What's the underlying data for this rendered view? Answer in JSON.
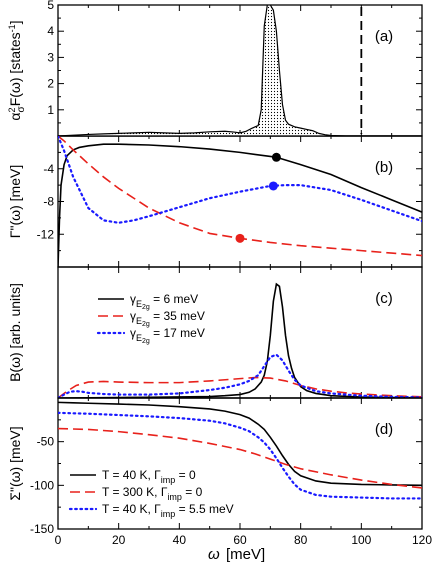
{
  "figure": {
    "x_axis": {
      "symbol": "ω",
      "label": "[meV]",
      "ticks": [
        "0",
        "20",
        "40",
        "60",
        "80",
        "100",
        "120"
      ],
      "range": [
        0,
        120
      ]
    }
  },
  "chart_data": [
    {
      "type": "area",
      "panel_label": "(a)",
      "ylabel": "α²σF(ω)  [states⁻¹]",
      "ylabel_main": "α",
      "ylabel_sup": "2",
      "ylabel_sub": "σ",
      "ylabel_rest": "F(ω)  [states",
      "ylabel_exp": "-1",
      "ylabel_close": "]",
      "ylim": [
        0,
        5
      ],
      "yticks": [
        "1",
        "2",
        "3",
        "4",
        "5"
      ],
      "color": "#000000",
      "fill_pattern": "dotted",
      "vertical_dashed_line_x": 100,
      "series": [
        {
          "x": [
            0,
            5,
            10,
            15,
            20,
            25,
            30,
            35,
            40,
            45,
            50,
            55,
            58,
            60,
            62,
            64,
            66,
            67,
            68,
            69,
            70,
            71,
            72,
            73,
            74,
            75,
            76,
            78,
            80,
            82,
            84,
            86,
            88,
            90,
            95,
            100,
            110,
            120
          ],
          "y": [
            0,
            0.03,
            0.06,
            0.08,
            0.1,
            0.12,
            0.14,
            0.12,
            0.1,
            0.12,
            0.16,
            0.18,
            0.15,
            0.12,
            0.18,
            0.3,
            0.4,
            1.0,
            4.2,
            5.0,
            5.0,
            4.8,
            4.0,
            2.5,
            1.2,
            0.6,
            0.45,
            0.35,
            0.3,
            0.25,
            0.2,
            0.1,
            0.05,
            0.02,
            0,
            0,
            0,
            0
          ]
        }
      ]
    },
    {
      "type": "line",
      "panel_label": "(b)",
      "ylabel": "Γ\"(ω)  [meV]",
      "ylim": [
        -16,
        0
      ],
      "yticks": [
        "-4",
        "-8",
        "-12"
      ],
      "yticks_values": [
        -4,
        -8,
        -12
      ],
      "series": [
        {
          "color": "#000000",
          "dash": "solid",
          "x": [
            0,
            0.5,
            1,
            2,
            3,
            5,
            7,
            10,
            15,
            20,
            30,
            40,
            50,
            60,
            70,
            72,
            80,
            90,
            100,
            110,
            120
          ],
          "y": [
            -16,
            -10,
            -6,
            -3.5,
            -2.4,
            -1.7,
            -1.4,
            -1.2,
            -1.0,
            -1.0,
            -1.1,
            -1.3,
            -1.6,
            -2.0,
            -2.5,
            -2.6,
            -3.5,
            -4.7,
            -6.3,
            -7.8,
            -9.3
          ],
          "marker": {
            "x": 72,
            "y": -2.6
          }
        },
        {
          "color": "#e8211b",
          "dash": "dashed",
          "x": [
            0,
            2,
            5,
            10,
            15,
            20,
            30,
            40,
            50,
            60,
            70,
            80,
            90,
            100,
            110,
            120
          ],
          "y": [
            0,
            -0.6,
            -1.7,
            -3.4,
            -5.0,
            -6.4,
            -8.8,
            -10.6,
            -11.9,
            -12.5,
            -13.0,
            -13.4,
            -13.7,
            -14.0,
            -14.3,
            -14.6
          ],
          "marker": {
            "x": 60,
            "y": -12.5
          }
        },
        {
          "color": "#1a1aff",
          "dash": "dotted",
          "x": [
            0,
            2,
            5,
            10,
            15,
            20,
            25,
            30,
            40,
            50,
            60,
            70,
            75,
            80,
            90,
            100,
            110,
            120
          ],
          "y": [
            0,
            -1.8,
            -5.0,
            -8.8,
            -10.3,
            -10.6,
            -10.3,
            -9.8,
            -8.7,
            -7.6,
            -6.8,
            -6.1,
            -6.0,
            -6.0,
            -6.6,
            -7.8,
            -9.1,
            -10.4
          ],
          "marker": {
            "x": 71,
            "y": -6.1
          }
        }
      ]
    },
    {
      "type": "line",
      "panel_label": "(c)",
      "ylabel": "B(ω)  [arb. units]",
      "ylim": [
        0,
        1.15
      ],
      "legend": {
        "placement": "top-left"
      },
      "series": [
        {
          "color": "#000000",
          "dash": "solid",
          "legend_label": {
            "gamma": "γ",
            "sub": "E",
            "subsub": "2g",
            "value": " =   6 meV"
          },
          "x": [
            0,
            10,
            20,
            30,
            40,
            50,
            55,
            60,
            63,
            65,
            67,
            68,
            69,
            70,
            71,
            72,
            73,
            74,
            75,
            76,
            77,
            78,
            80,
            82,
            85,
            90,
            100,
            110,
            120
          ],
          "y": [
            0,
            0.002,
            0.004,
            0.006,
            0.009,
            0.013,
            0.02,
            0.03,
            0.05,
            0.08,
            0.14,
            0.2,
            0.32,
            0.55,
            0.85,
            1.0,
            0.98,
            0.8,
            0.55,
            0.37,
            0.26,
            0.18,
            0.1,
            0.065,
            0.04,
            0.02,
            0.008,
            0.004,
            0.002
          ]
        },
        {
          "color": "#e8211b",
          "dash": "dashed",
          "legend_label": {
            "gamma": "γ",
            "sub": "E",
            "subsub": "2g",
            "value": " = 35 meV"
          },
          "x": [
            0,
            3,
            6,
            10,
            15,
            20,
            30,
            40,
            50,
            60,
            65,
            70,
            75,
            80,
            85,
            90,
            95,
            100,
            110,
            120
          ],
          "y": [
            0,
            0.06,
            0.11,
            0.14,
            0.145,
            0.14,
            0.135,
            0.135,
            0.15,
            0.17,
            0.18,
            0.175,
            0.15,
            0.11,
            0.08,
            0.06,
            0.045,
            0.035,
            0.02,
            0.01
          ]
        },
        {
          "color": "#1a1aff",
          "dash": "dotted",
          "legend_label": {
            "gamma": "γ",
            "sub": "E",
            "subsub": "2g",
            "value": " = 17 meV"
          },
          "x": [
            0,
            2,
            4,
            6,
            8,
            10,
            15,
            20,
            30,
            40,
            50,
            55,
            60,
            63,
            66,
            68,
            70,
            72,
            74,
            76,
            78,
            80,
            85,
            90,
            100,
            110,
            120
          ],
          "y": [
            0,
            0.03,
            0.055,
            0.06,
            0.055,
            0.045,
            0.035,
            0.03,
            0.03,
            0.04,
            0.07,
            0.09,
            0.12,
            0.15,
            0.2,
            0.28,
            0.36,
            0.38,
            0.33,
            0.24,
            0.16,
            0.11,
            0.06,
            0.04,
            0.02,
            0.01,
            0.005
          ]
        }
      ]
    },
    {
      "type": "line",
      "panel_label": "(d)",
      "ylabel": "Σ\"(ω)  [meV]",
      "ylim": [
        -150,
        0
      ],
      "yticks": [
        "-50",
        "-100",
        "-150"
      ],
      "yticks_values": [
        -50,
        -100,
        -150
      ],
      "legend": {
        "placement": "bottom-left"
      },
      "series": [
        {
          "color": "#000000",
          "dash": "solid",
          "legend_label": {
            "pre": "T =   40 K, Γ",
            "sub": "imp",
            "post": " = 0"
          },
          "x": [
            0,
            5,
            10,
            20,
            30,
            40,
            50,
            55,
            60,
            63,
            66,
            68,
            70,
            72,
            74,
            76,
            78,
            80,
            85,
            90,
            100,
            110,
            120
          ],
          "y": [
            -5,
            -5.5,
            -6,
            -7,
            -8,
            -10,
            -12.5,
            -15,
            -19,
            -23,
            -30,
            -36,
            -45,
            -55,
            -66,
            -76,
            -84,
            -89,
            -95,
            -97.5,
            -99,
            -99.5,
            -100
          ]
        },
        {
          "color": "#e8211b",
          "dash": "dashed",
          "legend_label": {
            "pre": "T = 300 K, Γ",
            "sub": "imp",
            "post": " = 0"
          },
          "x": [
            0,
            5,
            10,
            20,
            30,
            40,
            50,
            60,
            65,
            70,
            75,
            80,
            90,
            100,
            110,
            120
          ],
          "y": [
            -35,
            -35.5,
            -36,
            -38.5,
            -42,
            -46,
            -52,
            -59,
            -64,
            -70,
            -76,
            -81,
            -88,
            -94,
            -99,
            -103
          ]
        },
        {
          "color": "#1a1aff",
          "dash": "dotted",
          "legend_label": {
            "pre": "T =   40 K, Γ",
            "sub": "imp",
            "post": " = 5.5 meV"
          },
          "x": [
            0,
            5,
            10,
            20,
            30,
            40,
            50,
            55,
            60,
            63,
            66,
            68,
            70,
            72,
            74,
            76,
            78,
            80,
            85,
            90,
            100,
            110,
            120
          ],
          "y": [
            -17,
            -17.5,
            -18,
            -19.5,
            -21,
            -23,
            -26,
            -29,
            -34,
            -38,
            -45,
            -51,
            -59,
            -69,
            -80,
            -90,
            -99,
            -105,
            -111,
            -113,
            -114,
            -115,
            -115
          ]
        }
      ]
    }
  ]
}
